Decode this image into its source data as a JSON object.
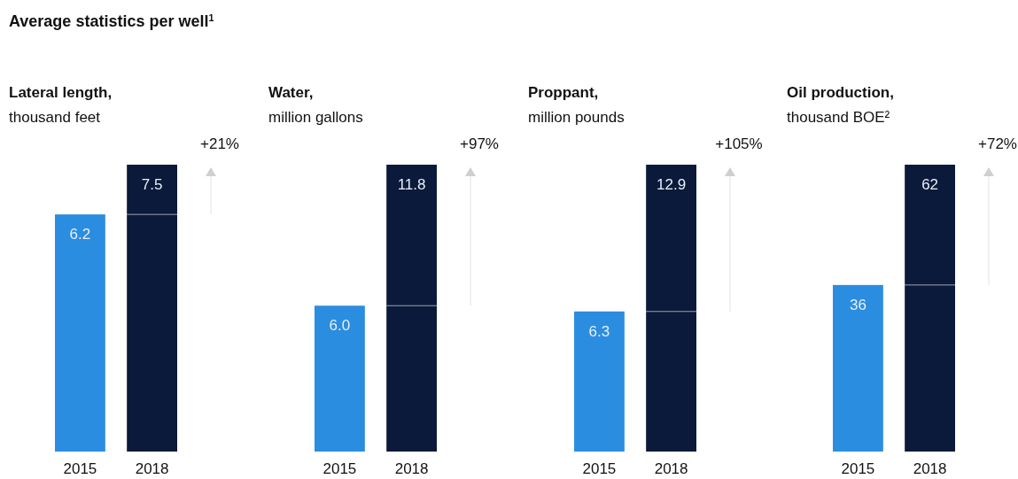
{
  "chart_data": [
    {
      "type": "other",
      "title": "Average statistics per well$^{1}$"
    },
    {
      "type": "bar",
      "title": "Lateral length,",
      "subtitle": "thousand feet",
      "categories": [
        "2015",
        "2018"
      ],
      "values": [
        6.2,
        7.5
      ],
      "value_labels": [
        "6.2",
        "7.5"
      ],
      "colors": [
        "#2b8de0",
        "#0b1a3a"
      ],
      "annotations": [
        "+21%"
      ]
    },
    {
      "type": "bar",
      "title": "Water,",
      "subtitle": "million gallons",
      "categories": [
        "2015",
        "2018"
      ],
      "values": [
        6.0,
        11.8
      ],
      "value_labels": [
        "6.0",
        "11.8"
      ],
      "colors": [
        "#2b8de0",
        "#0b1a3a"
      ],
      "annotations": [
        "+97%"
      ]
    },
    {
      "type": "bar",
      "title": "Proppant,",
      "subtitle": "million pounds",
      "categories": [
        "2015",
        "2018"
      ],
      "values": [
        6.3,
        12.9
      ],
      "value_labels": [
        "6.3",
        "12.9"
      ],
      "colors": [
        "#2b8de0",
        "#0b1a3a"
      ],
      "annotations": [
        "+105%"
      ]
    },
    {
      "type": "bar",
      "title": "Oil production,",
      "subtitle": "thousand BOE²",
      "categories": [
        "2015",
        "2018"
      ],
      "values": [
        36,
        62
      ],
      "value_labels": [
        "36",
        "62"
      ],
      "colors": [
        "#2b8de0",
        "#0b1a3a"
      ],
      "annotations": [
        "+72%"
      ]
    }
  ]
}
